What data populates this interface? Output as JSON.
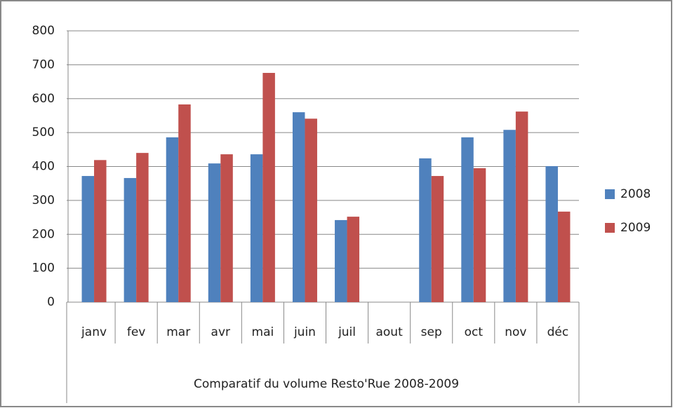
{
  "chart_data": {
    "type": "bar",
    "title": "Comparatif du volume Resto'Rue   2008-2009",
    "categories": [
      "janv",
      "fev",
      "mar",
      "avr",
      "mai",
      "juin",
      "juil",
      "aout",
      "sep",
      "oct",
      "nov",
      "déc"
    ],
    "series": [
      {
        "name": "2008",
        "color": "#4f81bd",
        "values": [
          372,
          366,
          486,
          409,
          436,
          560,
          242,
          null,
          424,
          486,
          508,
          401
        ]
      },
      {
        "name": "2009",
        "color": "#c0504d",
        "values": [
          419,
          440,
          583,
          436,
          676,
          541,
          252,
          null,
          372,
          395,
          562,
          267
        ]
      }
    ],
    "ylim": [
      0,
      800
    ],
    "yticks": [
      0,
      100,
      200,
      300,
      400,
      500,
      600,
      700,
      800
    ],
    "grid": true,
    "legend": "right"
  }
}
